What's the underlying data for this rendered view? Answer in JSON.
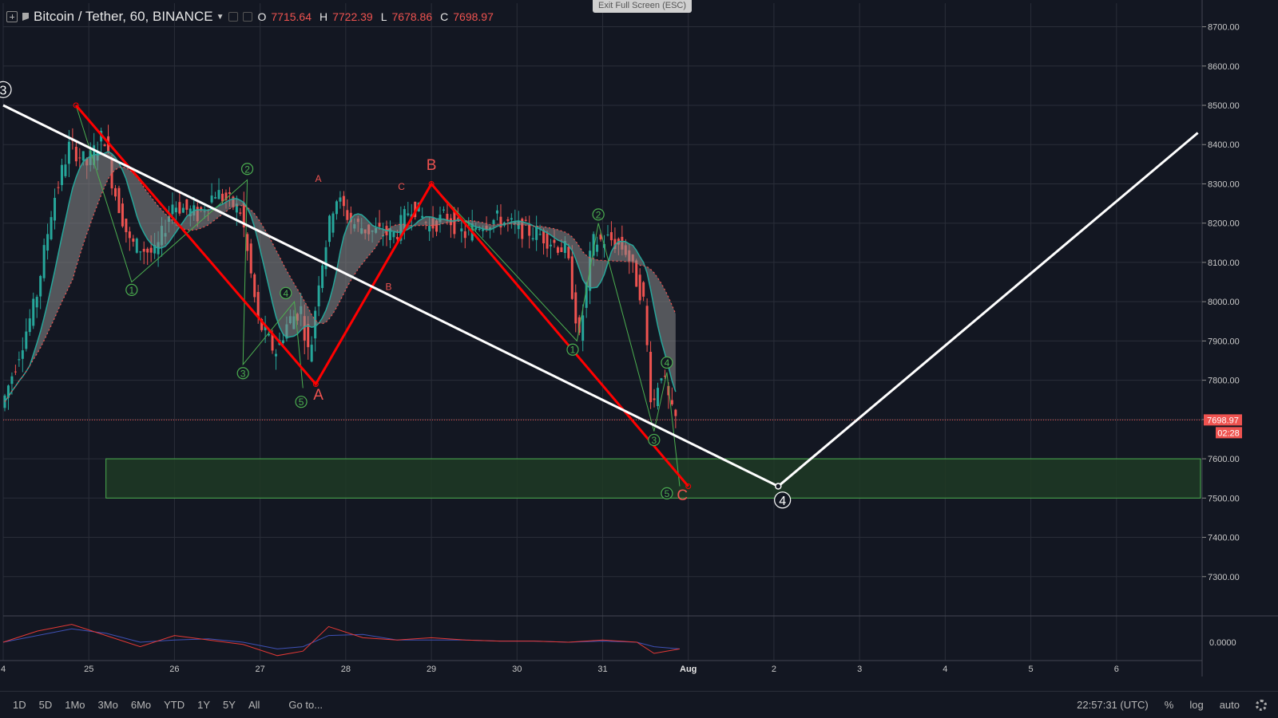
{
  "header": {
    "symbol": "Bitcoin / Tether, 60, BINANCE",
    "ohlc": [
      {
        "k": "O",
        "v": "7715.64"
      },
      {
        "k": "H",
        "v": "7722.39"
      },
      {
        "k": "L",
        "v": "7678.86"
      },
      {
        "k": "C",
        "v": "7698.97"
      }
    ]
  },
  "exit_fullscreen_label": "Exit Full Screen (ESC)",
  "bottom": {
    "ranges": [
      "1D",
      "5D",
      "1Mo",
      "3Mo",
      "6Mo",
      "YTD",
      "1Y",
      "5Y",
      "All"
    ],
    "goto": "Go to...",
    "time": "22:57:31 (UTC)",
    "pct": "%",
    "log": "log",
    "auto": "auto"
  },
  "chart_data": {
    "type": "candlestick",
    "symbol": "Bitcoin / Tether",
    "interval": "60",
    "exchange": "BINANCE",
    "last_price": "7698.97",
    "countdown": "02:28",
    "ylim": [
      7200,
      8760
    ],
    "y_ticks": [
      7300,
      7400,
      7500,
      7600,
      7700,
      7800,
      7900,
      8000,
      8100,
      8200,
      8300,
      8400,
      8500,
      8600,
      8700
    ],
    "y_tick_labels": [
      "7300.00",
      "7400.00",
      "7500.00",
      "7600.00",
      "7700.00",
      "7800.00",
      "7900.00",
      "8000.00",
      "8100.00",
      "8200.00",
      "8300.00",
      "8400.00",
      "8500.00",
      "8600.00",
      "8700.00"
    ],
    "x_range_days": [
      24.0,
      38.0
    ],
    "x_ticks": [
      {
        "day": 24,
        "label": "4"
      },
      {
        "day": 25,
        "label": "25"
      },
      {
        "day": 26,
        "label": "26"
      },
      {
        "day": 27,
        "label": "27"
      },
      {
        "day": 28,
        "label": "28"
      },
      {
        "day": 29,
        "label": "29"
      },
      {
        "day": 30,
        "label": "30"
      },
      {
        "day": 31,
        "label": "31"
      },
      {
        "day": 32,
        "label": "Aug"
      },
      {
        "day": 33,
        "label": "2"
      },
      {
        "day": 34,
        "label": "3"
      },
      {
        "day": 35,
        "label": "4"
      },
      {
        "day": 36,
        "label": "5"
      },
      {
        "day": 37,
        "label": "6"
      }
    ],
    "price_path": [
      [
        24.0,
        7730
      ],
      [
        24.4,
        8000
      ],
      [
        24.6,
        8250
      ],
      [
        24.8,
        8400
      ],
      [
        25.0,
        8350
      ],
      [
        25.2,
        8430
      ],
      [
        25.3,
        8300
      ],
      [
        25.5,
        8150
      ],
      [
        25.8,
        8120
      ],
      [
        26.0,
        8250
      ],
      [
        26.3,
        8220
      ],
      [
        26.5,
        8280
      ],
      [
        26.8,
        8230
      ],
      [
        27.0,
        7950
      ],
      [
        27.2,
        7870
      ],
      [
        27.35,
        7950
      ],
      [
        27.5,
        7980
      ],
      [
        27.6,
        7850
      ],
      [
        27.7,
        8050
      ],
      [
        27.9,
        8270
      ],
      [
        28.1,
        8200
      ],
      [
        28.3,
        8180
      ],
      [
        28.6,
        8170
      ],
      [
        28.8,
        8250
      ],
      [
        29.0,
        8190
      ],
      [
        29.2,
        8220
      ],
      [
        29.4,
        8170
      ],
      [
        29.6,
        8200
      ],
      [
        29.8,
        8210
      ],
      [
        30.0,
        8190
      ],
      [
        30.3,
        8170
      ],
      [
        30.6,
        8130
      ],
      [
        30.75,
        7900
      ],
      [
        30.9,
        8150
      ],
      [
        31.1,
        8160
      ],
      [
        31.3,
        8130
      ],
      [
        31.5,
        8000
      ],
      [
        31.6,
        7720
      ],
      [
        31.7,
        7830
      ],
      [
        31.85,
        7700
      ]
    ],
    "support_zone": {
      "x0": 25.2,
      "x1": 38.0,
      "y0": 7500,
      "y1": 7600
    },
    "white_projection": [
      [
        24.0,
        8500
      ],
      [
        33.05,
        7530
      ],
      [
        37.95,
        8430
      ]
    ],
    "red_path": [
      [
        24.85,
        8500
      ],
      [
        27.65,
        7790
      ],
      [
        29.0,
        8300
      ],
      [
        32.0,
        7530
      ]
    ],
    "green_subwaves": [
      [
        [
          24.85,
          8500
        ],
        [
          25.5,
          8050
        ],
        [
          26.85,
          8310
        ],
        [
          26.8,
          7840
        ],
        [
          27.4,
          8000
        ],
        [
          27.5,
          7780
        ]
      ],
      [
        [
          29.0,
          8300
        ],
        [
          30.7,
          7900
        ],
        [
          30.95,
          8200
        ],
        [
          31.6,
          7670
        ],
        [
          31.75,
          7820
        ],
        [
          31.9,
          7530
        ]
      ]
    ],
    "wave_labels": [
      {
        "text": "1",
        "x": 25.5,
        "y": 8030,
        "color": "#4caf50",
        "circle": true
      },
      {
        "text": "2",
        "x": 26.85,
        "y": 8338,
        "color": "#4caf50",
        "circle": true
      },
      {
        "text": "3",
        "x": 26.8,
        "y": 7818,
        "color": "#4caf50",
        "circle": true
      },
      {
        "text": "4",
        "x": 27.3,
        "y": 8022,
        "color": "#4caf50",
        "circle": true
      },
      {
        "text": "5",
        "x": 27.48,
        "y": 7745,
        "color": "#4caf50",
        "circle": true
      },
      {
        "text": "1",
        "x": 30.65,
        "y": 7878,
        "color": "#4caf50",
        "circle": true
      },
      {
        "text": "2",
        "x": 30.95,
        "y": 8222,
        "color": "#4caf50",
        "circle": true
      },
      {
        "text": "3",
        "x": 31.6,
        "y": 7648,
        "color": "#4caf50",
        "circle": true
      },
      {
        "text": "4",
        "x": 31.75,
        "y": 7845,
        "color": "#4caf50",
        "circle": true
      },
      {
        "text": "5",
        "x": 31.75,
        "y": 7512,
        "color": "#4caf50",
        "circle": true
      },
      {
        "text": "A",
        "x": 27.68,
        "y": 7750,
        "color": "#ef5350",
        "circle": false,
        "big": true
      },
      {
        "text": "B",
        "x": 29.0,
        "y": 8335,
        "color": "#ef5350",
        "circle": false,
        "big": true
      },
      {
        "text": "C",
        "x": 31.93,
        "y": 7495,
        "color": "#ef5350",
        "circle": false,
        "big": true
      },
      {
        "text": "A",
        "x": 27.68,
        "y": 8305,
        "color": "#ef5350",
        "circle": false,
        "big": false
      },
      {
        "text": "B",
        "x": 28.5,
        "y": 8030,
        "color": "#ef5350",
        "circle": false,
        "big": false
      },
      {
        "text": "C",
        "x": 28.65,
        "y": 8285,
        "color": "#ef5350",
        "circle": false,
        "big": false
      },
      {
        "text": "4",
        "x": 33.1,
        "y": 7495,
        "color": "#ffffff",
        "circle": true,
        "big": true
      },
      {
        "text": "3",
        "x": 24.0,
        "y": 8540,
        "color": "#ffffff",
        "circle": true,
        "big": true
      }
    ],
    "oscillator": {
      "zero_label": "0.0000",
      "red_series": [
        [
          24.0,
          0.0
        ],
        [
          24.4,
          0.5
        ],
        [
          24.8,
          0.8
        ],
        [
          25.2,
          0.3
        ],
        [
          25.6,
          -0.2
        ],
        [
          26.0,
          0.3
        ],
        [
          26.4,
          0.1
        ],
        [
          26.8,
          -0.1
        ],
        [
          27.2,
          -0.6
        ],
        [
          27.5,
          -0.4
        ],
        [
          27.8,
          0.7
        ],
        [
          28.2,
          0.2
        ],
        [
          28.6,
          0.1
        ],
        [
          29.0,
          0.2
        ],
        [
          29.4,
          0.1
        ],
        [
          29.8,
          0.05
        ],
        [
          30.2,
          0.05
        ],
        [
          30.6,
          0.0
        ],
        [
          31.0,
          0.1
        ],
        [
          31.4,
          0.0
        ],
        [
          31.6,
          -0.5
        ],
        [
          31.9,
          -0.3
        ]
      ],
      "blue_series": [
        [
          24.0,
          0.0
        ],
        [
          24.4,
          0.3
        ],
        [
          24.8,
          0.6
        ],
        [
          25.2,
          0.4
        ],
        [
          25.6,
          0.0
        ],
        [
          26.0,
          0.1
        ],
        [
          26.4,
          0.15
        ],
        [
          26.8,
          0.0
        ],
        [
          27.2,
          -0.3
        ],
        [
          27.5,
          -0.2
        ],
        [
          27.8,
          0.3
        ],
        [
          28.2,
          0.35
        ],
        [
          28.6,
          0.1
        ],
        [
          29.0,
          0.1
        ],
        [
          29.4,
          0.1
        ],
        [
          29.8,
          0.05
        ],
        [
          30.2,
          0.05
        ],
        [
          30.6,
          0.0
        ],
        [
          31.0,
          0.05
        ],
        [
          31.4,
          0.0
        ],
        [
          31.6,
          -0.2
        ],
        [
          31.9,
          -0.3
        ]
      ]
    },
    "colors": {
      "background": "#131722",
      "grid": "#2a2e39",
      "bull": "#26a69a",
      "bear": "#ef5350",
      "green_wave": "#4caf50",
      "red_wave": "#ff0000",
      "white_line": "#ffffff",
      "zone_fill": "#1e3a25",
      "zone_border": "#4caf50",
      "price_label": "#ef5350"
    }
  }
}
